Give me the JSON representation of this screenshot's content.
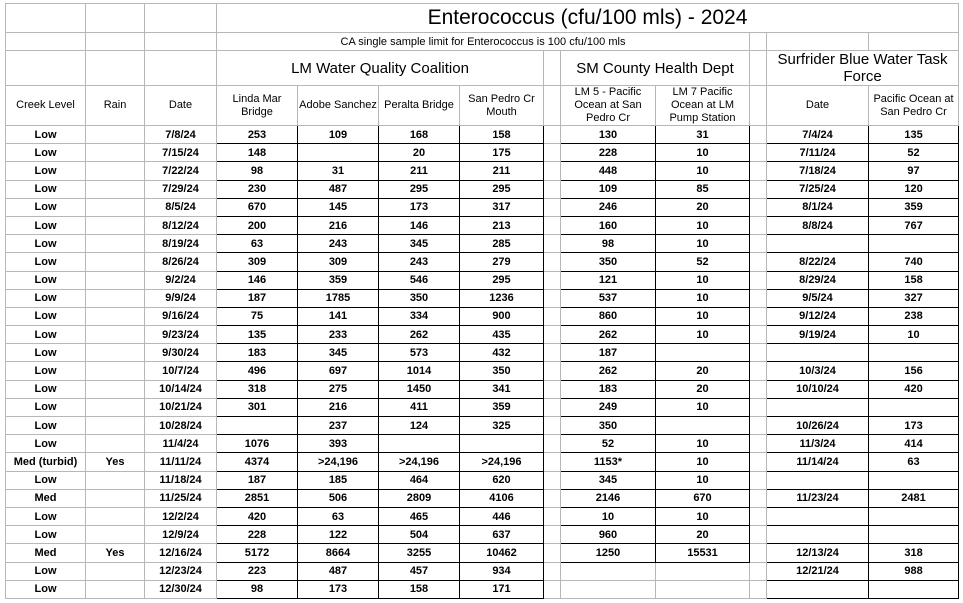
{
  "title": "Enterococcus (cfu/100 mls) - 2024",
  "subtitle": "CA single sample limit for Enterococcus is 100 cfu/100 mls",
  "colors": {
    "black": "#000000",
    "orange": "#b45f06",
    "red": "#cc0000",
    "grid": "#b7b7b7"
  },
  "groups": {
    "lm": "LM Water Quality Coalition",
    "sm": "SM County Health Dept",
    "surf": "Surfrider Blue Water Task Force"
  },
  "headers": {
    "creek": "Creek Level",
    "rain": "Rain",
    "date": "Date",
    "linda": "Linda Mar Bridge",
    "adobe": "Adobe Sanchez",
    "peralta": "Peralta Bridge",
    "sanpedro": "San Pedro Cr Mouth",
    "lm5": "LM 5 - Pacific Ocean at San Pedro Cr",
    "lm7": "LM 7 Pacific Ocean at LM Pump Station",
    "surf_date": "Date",
    "surf_val": "Pacific Ocean at San Pedro Cr"
  },
  "rows": [
    {
      "creek": "Low",
      "rain": "",
      "date": "7/8/24",
      "linda": "253",
      "adobe": "109",
      "peralta": "168",
      "sanpedro": "158",
      "lm5": "130",
      "lm7": "31",
      "surf_date": "7/4/24",
      "surf_val": "135"
    },
    {
      "creek": "Low",
      "rain": "",
      "date": "7/15/24",
      "linda": "148",
      "adobe": "",
      "peralta": "20",
      "sanpedro": "175",
      "lm5": "228",
      "lm7": "10",
      "surf_date": "7/11/24",
      "surf_val": "52"
    },
    {
      "creek": "Low",
      "rain": "",
      "date": "7/22/24",
      "linda": "98",
      "adobe": "31",
      "peralta": "211",
      "sanpedro": "211",
      "lm5": "448",
      "lm7": "10",
      "surf_date": "7/18/24",
      "surf_val": "97"
    },
    {
      "creek": "Low",
      "rain": "",
      "date": "7/29/24",
      "linda": "230",
      "adobe": "487",
      "peralta": "295",
      "sanpedro": "295",
      "lm5": "109",
      "lm7": "85",
      "surf_date": "7/25/24",
      "surf_val": "120"
    },
    {
      "creek": "Low",
      "rain": "",
      "date": "8/5/24",
      "linda": "670",
      "adobe": "145",
      "peralta": "173",
      "sanpedro": "317",
      "lm5": "246",
      "lm7": "20",
      "surf_date": "8/1/24",
      "surf_val": "359"
    },
    {
      "creek": "Low",
      "rain": "",
      "date": "8/12/24",
      "linda": "200",
      "adobe": "216",
      "peralta": "146",
      "sanpedro": "213",
      "lm5": "160",
      "lm7": "10",
      "surf_date": "8/8/24",
      "surf_val": "767"
    },
    {
      "creek": "Low",
      "rain": "",
      "date": "8/19/24",
      "linda": "63",
      "adobe": "243",
      "peralta": "345",
      "sanpedro": "285",
      "lm5": "98",
      "lm7": "10",
      "surf_date": "",
      "surf_val": ""
    },
    {
      "creek": "Low",
      "rain": "",
      "date": "8/26/24",
      "linda": "309",
      "adobe": "309",
      "peralta": "243",
      "sanpedro": "279",
      "lm5": "350",
      "lm7": "52",
      "surf_date": "8/22/24",
      "surf_val": "740"
    },
    {
      "creek": "Low",
      "rain": "",
      "date": "9/2/24",
      "linda": "146",
      "adobe": "359",
      "peralta": "546",
      "sanpedro": "295",
      "lm5": "121",
      "lm7": "10",
      "surf_date": "8/29/24",
      "surf_val": "158"
    },
    {
      "creek": "Low",
      "rain": "",
      "date": "9/9/24",
      "linda": "187",
      "adobe": "1785",
      "peralta": "350",
      "sanpedro": "1236",
      "lm5": "537",
      "lm7": "10",
      "surf_date": "9/5/24",
      "surf_val": "327"
    },
    {
      "creek": "Low",
      "rain": "",
      "date": "9/16/24",
      "linda": "75",
      "adobe": "141",
      "peralta": "334",
      "sanpedro": "900",
      "lm5": "860",
      "lm7": "10",
      "surf_date": "9/12/24",
      "surf_val": "238"
    },
    {
      "creek": "Low",
      "rain": "",
      "date": "9/23/24",
      "linda": "135",
      "adobe": "233",
      "peralta": "262",
      "sanpedro": "435",
      "lm5": "262",
      "lm7": "10",
      "surf_date": "9/19/24",
      "surf_val": "10"
    },
    {
      "creek": "Low",
      "rain": "",
      "date": "9/30/24",
      "linda": "183",
      "adobe": "345",
      "peralta": "573",
      "sanpedro": "432",
      "lm5": "187",
      "lm7": "",
      "surf_date": "",
      "surf_val": ""
    },
    {
      "creek": "Low",
      "rain": "",
      "date": "10/7/24",
      "linda": "496",
      "adobe": "697",
      "peralta": "1014",
      "sanpedro": "350",
      "lm5": "262",
      "lm7": "20",
      "surf_date": "10/3/24",
      "surf_val": "156"
    },
    {
      "creek": "Low",
      "rain": "",
      "date": "10/14/24",
      "linda": "318",
      "adobe": "275",
      "peralta": "1450",
      "sanpedro": "341",
      "lm5": "183",
      "lm7": "20",
      "surf_date": "10/10/24",
      "surf_val": "420"
    },
    {
      "creek": "Low",
      "rain": "",
      "date": "10/21/24",
      "linda": "301",
      "adobe": "216",
      "peralta": "411",
      "sanpedro": "359",
      "lm5": "249",
      "lm7": "10",
      "surf_date": "",
      "surf_val": ""
    },
    {
      "creek": "Low",
      "rain": "",
      "date": "10/28/24",
      "linda": "",
      "adobe": "237",
      "peralta": "124",
      "sanpedro": "325",
      "lm5": "350",
      "lm7": "",
      "surf_date": "10/26/24",
      "surf_val": "173"
    },
    {
      "creek": "Low",
      "rain": "",
      "date": "11/4/24",
      "linda": "1076",
      "adobe": "393",
      "peralta": "",
      "sanpedro": "",
      "lm5": "52",
      "lm7": "10",
      "surf_date": "11/3/24",
      "surf_val": "414"
    },
    {
      "creek": "Med (turbid)",
      "rain": "Yes",
      "date": "11/11/24",
      "linda": "4374",
      "adobe": ">24,196",
      "peralta": ">24,196",
      "sanpedro": ">24,196",
      "lm5": "1153*",
      "lm7": "10",
      "surf_date": "11/14/24",
      "surf_val": "63"
    },
    {
      "creek": "Low",
      "rain": "",
      "date": "11/18/24",
      "linda": "187",
      "adobe": "185",
      "peralta": "464",
      "sanpedro": "620",
      "lm5": "345",
      "lm7": "10",
      "surf_date": "",
      "surf_val": ""
    },
    {
      "creek": "Med",
      "rain": "",
      "date": "11/25/24",
      "linda": "2851",
      "adobe": "506",
      "peralta": "2809",
      "sanpedro": "4106",
      "lm5": "2146",
      "lm7": "670",
      "surf_date": "11/23/24",
      "surf_val": "2481"
    },
    {
      "creek": "Low",
      "rain": "",
      "date": "12/2/24",
      "linda": "420",
      "adobe": "63",
      "peralta": "465",
      "sanpedro": "446",
      "lm5": "10",
      "lm7": "10",
      "surf_date": "",
      "surf_val": ""
    },
    {
      "creek": "Low",
      "rain": "",
      "date": "12/9/24",
      "linda": "228",
      "adobe": "122",
      "peralta": "504",
      "sanpedro": "637",
      "lm5": "960",
      "lm7": "20",
      "surf_date": "",
      "surf_val": ""
    },
    {
      "creek": "Med",
      "rain": "Yes",
      "date": "12/16/24",
      "linda": "5172",
      "adobe": "8664",
      "peralta": "3255",
      "sanpedro": "10462",
      "lm5": "1250",
      "lm7": "15531",
      "surf_date": "12/13/24",
      "surf_val": "318"
    },
    {
      "creek": "Low",
      "rain": "",
      "date": "12/23/24",
      "linda": "223",
      "adobe": "487",
      "peralta": "457",
      "sanpedro": "934",
      "lm5": "",
      "lm7": "",
      "surf_date": "12/21/24",
      "surf_val": "988"
    },
    {
      "creek": "Low",
      "rain": "",
      "date": "12/30/24",
      "linda": "98",
      "adobe": "173",
      "peralta": "158",
      "sanpedro": "171",
      "lm5": "",
      "lm7": "",
      "surf_date": "",
      "surf_val": ""
    }
  ]
}
